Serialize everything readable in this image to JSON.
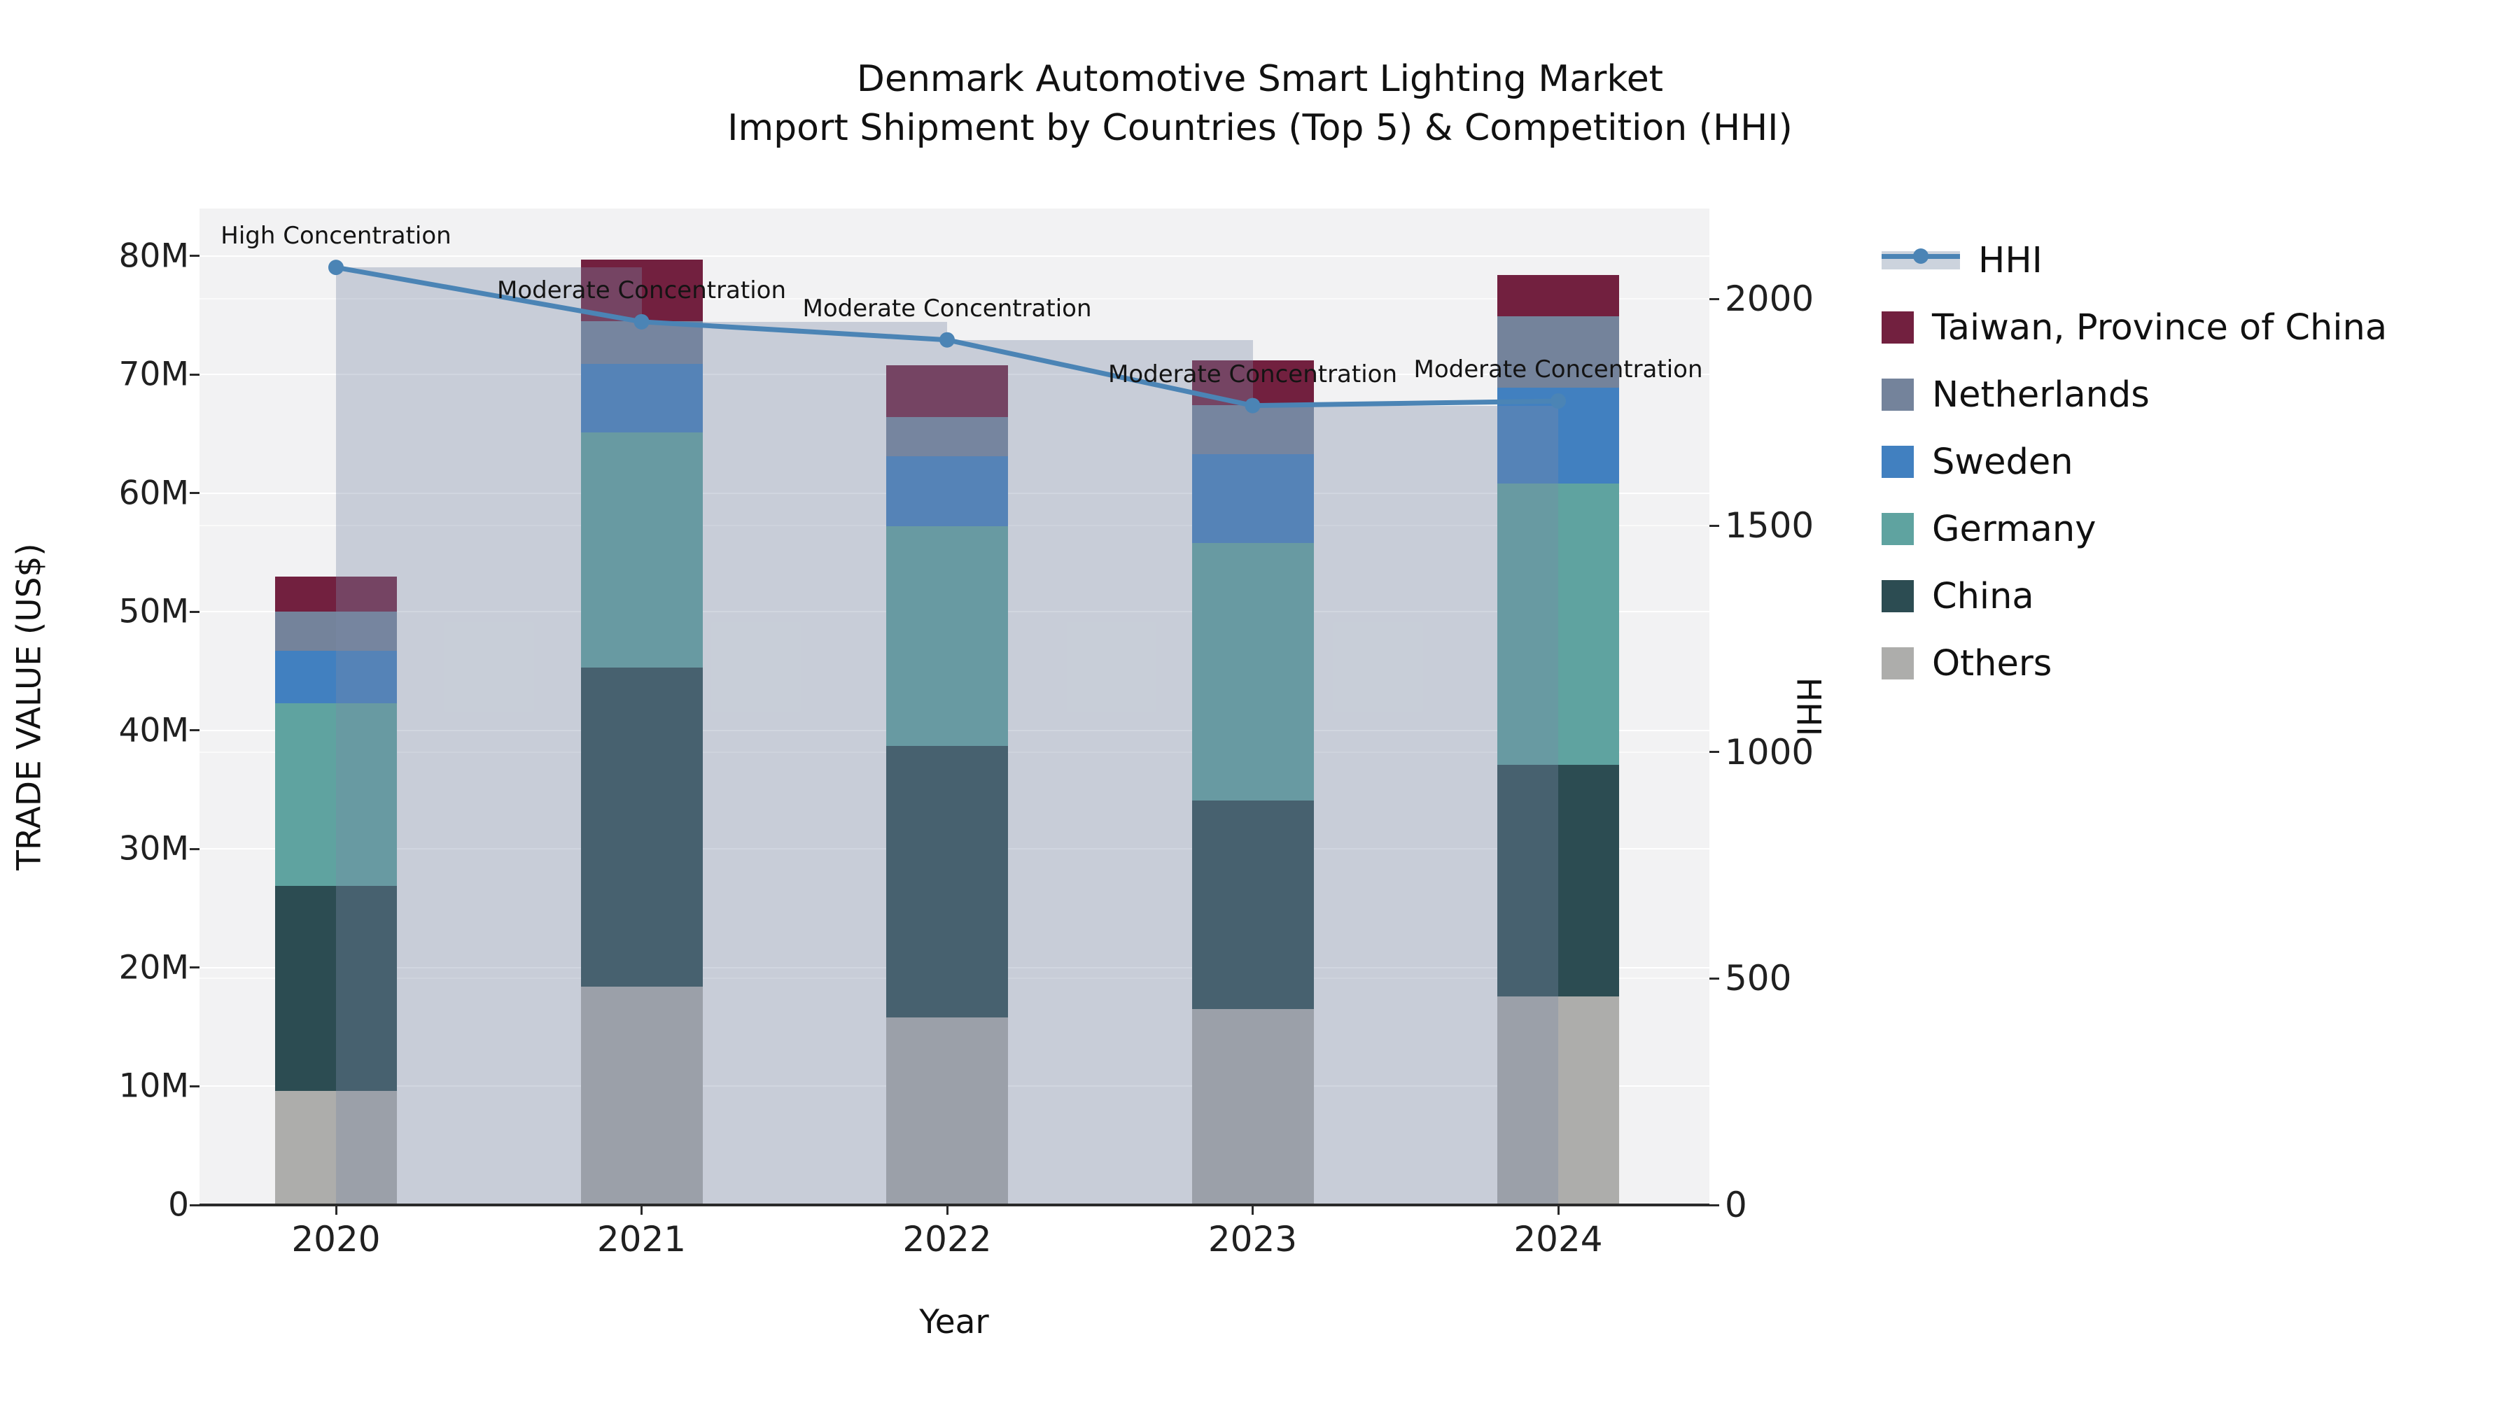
{
  "title": {
    "line1": "Denmark Automotive Smart Lighting Market",
    "line2": "Import Shipment by Countries (Top 5) & Competition (HHI)"
  },
  "axes": {
    "x_label": "Year",
    "y_left_label": "TRADE VALUE (US$)",
    "y_right_label": "HHI",
    "y_left_ticks": [
      "0",
      "10M",
      "20M",
      "30M",
      "40M",
      "50M",
      "60M",
      "70M",
      "80M"
    ],
    "y_right_ticks": [
      "0",
      "500",
      "1000",
      "1500",
      "2000"
    ]
  },
  "legend": [
    {
      "label": "HHI",
      "type": "line",
      "color": "#4b84b5",
      "band_color": "#ccd3dd"
    },
    {
      "label": "Taiwan, Province of China",
      "type": "patch",
      "color": "#72203f"
    },
    {
      "label": "Netherlands",
      "type": "patch",
      "color": "#74839b"
    },
    {
      "label": "Sweden",
      "type": "patch",
      "color": "#4180c0"
    },
    {
      "label": "Germany",
      "type": "patch",
      "color": "#5fa3a0"
    },
    {
      "label": "China",
      "type": "patch",
      "color": "#2c4c52"
    },
    {
      "label": "Others",
      "type": "patch",
      "color": "#adadab"
    }
  ],
  "chart_data": {
    "type": "bar",
    "subtype": "stacked-bar-with-line",
    "title": "Denmark Automotive Smart Lighting Market — Import Shipment by Countries (Top 5) & Competition (HHI)",
    "xlabel": "Year",
    "ylabel_left": "TRADE VALUE (US$)",
    "ylabel_right": "HHI",
    "categories": [
      "2020",
      "2021",
      "2022",
      "2023",
      "2024"
    ],
    "bar_value_unit": "USD millions",
    "series": [
      {
        "name": "Others",
        "color": "#adadab",
        "values": [
          9.6,
          18.4,
          15.8,
          16.5,
          17.6
        ]
      },
      {
        "name": "China",
        "color": "#2c4c52",
        "values": [
          17.3,
          26.9,
          22.9,
          17.6,
          19.5
        ]
      },
      {
        "name": "Germany",
        "color": "#5fa3a0",
        "values": [
          15.4,
          19.8,
          18.5,
          21.7,
          23.7
        ]
      },
      {
        "name": "Sweden",
        "color": "#4180c0",
        "values": [
          4.4,
          5.8,
          5.9,
          7.5,
          8.1
        ]
      },
      {
        "name": "Netherlands",
        "color": "#74839b",
        "values": [
          3.3,
          3.6,
          3.3,
          4.1,
          6.0
        ]
      },
      {
        "name": "Taiwan, Province of China",
        "color": "#72203f",
        "values": [
          3.0,
          5.2,
          4.4,
          3.8,
          3.5
        ]
      }
    ],
    "bar_totals": [
      53.0,
      79.7,
      70.8,
      71.2,
      78.4
    ],
    "line_series": {
      "name": "HHI",
      "color": "#4b84b5",
      "values": [
        2070,
        1950,
        1910,
        1765,
        1775
      ],
      "fill": "step-post translucent band under line",
      "fill_color": "rgba(122,138,166,0.35)"
    },
    "annotations": [
      {
        "category": "2020",
        "text": "High Concentration"
      },
      {
        "category": "2021",
        "text": "Moderate Concentration"
      },
      {
        "category": "2022",
        "text": "Moderate Concentration"
      },
      {
        "category": "2023",
        "text": "Moderate Concentration"
      },
      {
        "category": "2024",
        "text": "Moderate Concentration"
      }
    ],
    "ylim_left": [
      0,
      84000000
    ],
    "ylim_right": [
      0,
      2200
    ],
    "grid": true,
    "legend_position": "right"
  }
}
